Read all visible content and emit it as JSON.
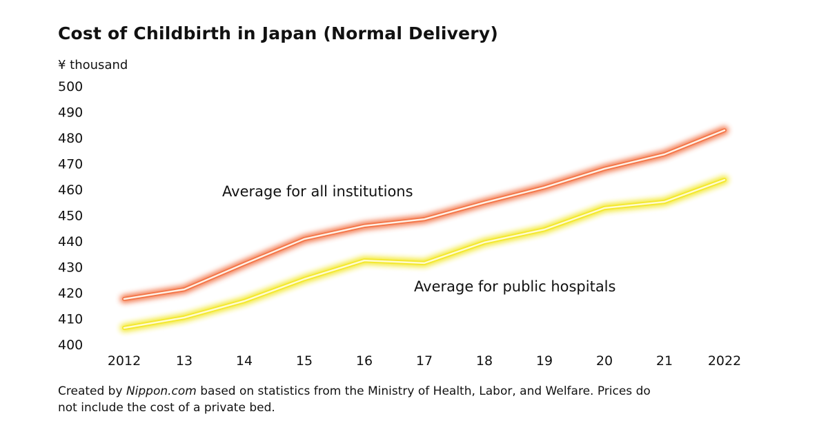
{
  "chart_data": {
    "type": "line",
    "title": "Cost of Childbirth in Japan (Normal Delivery)",
    "ylabel": "¥ thousand",
    "xlabel": "",
    "categories": [
      "2012",
      "13",
      "14",
      "15",
      "16",
      "17",
      "18",
      "19",
      "20",
      "21",
      "2022"
    ],
    "ylim": [
      400,
      500
    ],
    "yticks": [
      400,
      410,
      420,
      430,
      440,
      450,
      460,
      470,
      480,
      490,
      500
    ],
    "grid": false,
    "series": [
      {
        "name": "Average for all institutions",
        "color": "#f26b3a",
        "values": [
          417.6,
          421.3,
          431.2,
          440.8,
          445.9,
          448.5,
          454.9,
          460.8,
          468.0,
          473.6,
          482.9
        ]
      },
      {
        "name": "Average for public hospitals",
        "color": "#f2e61e",
        "values": [
          406.4,
          410.4,
          416.8,
          425.3,
          432.5,
          431.5,
          439.5,
          444.5,
          452.8,
          455.2,
          463.7
        ]
      }
    ]
  },
  "note": {
    "prefix": "Created by ",
    "source": "Nippon.com",
    "suffix": " based on statistics from the Ministry of Health, Labor, and Welfare. Prices do not include the cost of a private bed."
  }
}
